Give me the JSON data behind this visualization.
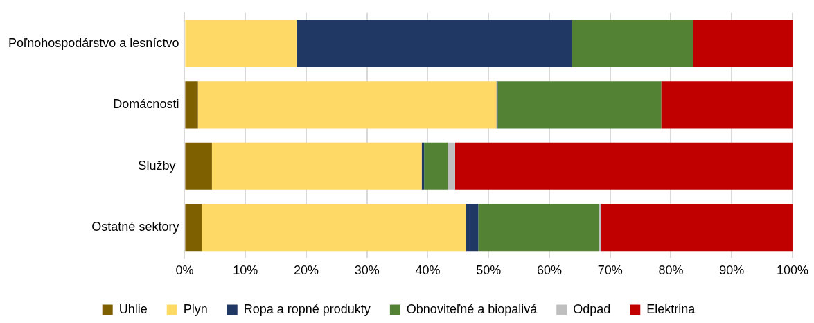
{
  "chart_data": {
    "type": "bar",
    "orientation": "horizontal",
    "stacked": true,
    "categories": [
      "Poľnohospodárstvo a lesníctvo",
      "Domácnosti",
      "Služby ",
      "Ostatné sektory"
    ],
    "series": [
      {
        "name": "Uhlie",
        "color": "#7f6000",
        "values": [
          null,
          2.2,
          4.5,
          2.8
        ]
      },
      {
        "name": "Plyn",
        "color": "#ffd966",
        "values": [
          18.4,
          49.1,
          34.5,
          43.5
        ]
      },
      {
        "name": "Ropa a ropné produkty",
        "color": "#203864",
        "values": [
          45.3,
          0.2,
          0.4,
          2.0
        ]
      },
      {
        "name": "Obnoviteľné a biopalivá",
        "color": "#548235",
        "values": [
          19.9,
          26.9,
          3.9,
          19.8
        ]
      },
      {
        "name": "Odpad",
        "color": "#bfbfbf",
        "values": [
          0,
          0,
          1.2,
          0.4
        ]
      },
      {
        "name": "Elektrina",
        "color": "#c00000",
        "values": [
          16.4,
          21.6,
          55.5,
          31.5
        ]
      }
    ],
    "xlim": [
      0,
      100
    ],
    "xticks": [
      {
        "value": 0,
        "label": "0%"
      },
      {
        "value": 10,
        "label": "10%"
      },
      {
        "value": 20,
        "label": "20%"
      },
      {
        "value": 30,
        "label": "30%"
      },
      {
        "value": 40,
        "label": "40%"
      },
      {
        "value": 50,
        "label": "50%"
      },
      {
        "value": 60,
        "label": "60%"
      },
      {
        "value": 70,
        "label": "70%"
      },
      {
        "value": 80,
        "label": "80%"
      },
      {
        "value": 90,
        "label": "90%"
      },
      {
        "value": 100,
        "label": "100%"
      }
    ],
    "grid": "x",
    "legend": "bottom"
  }
}
